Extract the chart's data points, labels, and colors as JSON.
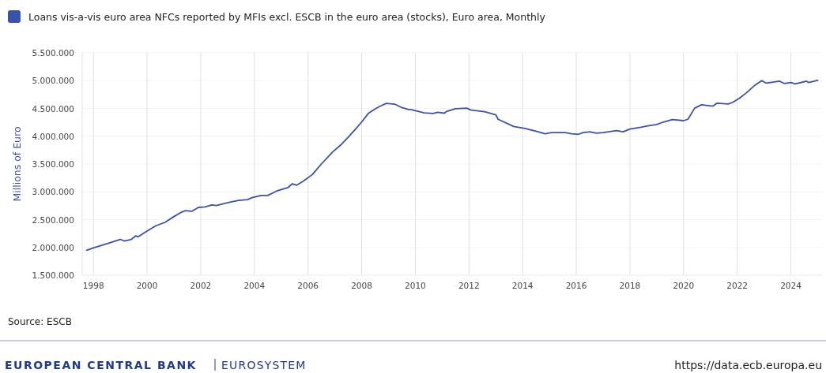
{
  "chart_data": {
    "type": "line",
    "ylabel": "Millions of Euro",
    "legend": "top left",
    "grid": true,
    "line_style": "solid",
    "annotations": [
      "Source: ESCB",
      "EUROPEAN CENTRAL BANK",
      "EUROSYSTEM",
      "https://data.ecb.europa.eu"
    ],
    "xlim": [
      "1997-08",
      "2025-03"
    ],
    "xticks": [
      {
        "value": "1998",
        "label": "1998"
      },
      {
        "value": "2000",
        "label": "2000"
      },
      {
        "value": "2002",
        "label": "2002"
      },
      {
        "value": "2004",
        "label": "2004"
      },
      {
        "value": "2006",
        "label": "2006"
      },
      {
        "value": "2008",
        "label": "2008"
      },
      {
        "value": "2010",
        "label": "2010"
      },
      {
        "value": "2012",
        "label": "2012"
      },
      {
        "value": "2014",
        "label": "2014"
      },
      {
        "value": "2016",
        "label": "2016"
      },
      {
        "value": "2018",
        "label": "2018"
      },
      {
        "value": "2020",
        "label": "2020"
      },
      {
        "value": "2022",
        "label": "2022"
      },
      {
        "value": "2024",
        "label": "2024"
      }
    ],
    "ylim": [
      1500000,
      5500000
    ],
    "yticks": [
      {
        "value": 1500000,
        "label": "1.500.000"
      },
      {
        "value": 2000000,
        "label": "2.000.000"
      },
      {
        "value": 2500000,
        "label": "2.500.000"
      },
      {
        "value": 3000000,
        "label": "3.000.000"
      },
      {
        "value": 3500000,
        "label": "3.500.000"
      },
      {
        "value": 4000000,
        "label": "4.000.000"
      },
      {
        "value": 4500000,
        "label": "4.500.000"
      },
      {
        "value": 5000000,
        "label": "5.000.000"
      },
      {
        "value": 5500000,
        "label": "5.500.000"
      }
    ],
    "series": [
      {
        "name": "Loans vis-a-vis euro area NFCs reported by MFIs excl. ESCB in the euro area (stocks), Euro area, Monthly",
        "color": "#3b52ad",
        "x": [
          "1997-10",
          "1998-01",
          "1998-07",
          "1999-01",
          "1999-03",
          "1999-06",
          "1999-08",
          "1999-09",
          "2000-01",
          "2000-05",
          "2000-09",
          "2001-01",
          "2001-04",
          "2001-06",
          "2001-09",
          "2001-12",
          "2002-03",
          "2002-06",
          "2002-08",
          "2003-02",
          "2003-06",
          "2003-10",
          "2003-12",
          "2004-04",
          "2004-07",
          "2004-11",
          "2005-04",
          "2005-06",
          "2005-08",
          "2005-11",
          "2006-03",
          "2006-07",
          "2006-12",
          "2007-04",
          "2007-07",
          "2007-10",
          "2008-01",
          "2008-04",
          "2008-07",
          "2008-09",
          "2008-12",
          "2009-04",
          "2009-07",
          "2009-10",
          "2009-11",
          "2010-05",
          "2010-09",
          "2010-11",
          "2011-02",
          "2011-03",
          "2011-07",
          "2011-12",
          "2012-02",
          "2012-08",
          "2013-01",
          "2013-02",
          "2013-09",
          "2014-02",
          "2014-07",
          "2014-11",
          "2015-02",
          "2015-08",
          "2015-11",
          "2016-02",
          "2016-04",
          "2016-07",
          "2016-10",
          "2017-01",
          "2017-07",
          "2017-10",
          "2018-01",
          "2018-06",
          "2018-09",
          "2019-01",
          "2019-04",
          "2019-08",
          "2020-01",
          "2020-03",
          "2020-06",
          "2020-09",
          "2021-02",
          "2021-04",
          "2021-09",
          "2021-11",
          "2022-02",
          "2022-05",
          "2022-09",
          "2022-12",
          "2023-02",
          "2023-08",
          "2023-10",
          "2024-01",
          "2024-03",
          "2024-08",
          "2024-09",
          "2025-01"
        ],
        "values": [
          1950000,
          1990000,
          2065000,
          2145000,
          2115000,
          2145000,
          2210000,
          2190000,
          2295000,
          2390000,
          2450000,
          2555000,
          2625000,
          2660000,
          2650000,
          2720000,
          2730000,
          2765000,
          2755000,
          2815000,
          2845000,
          2860000,
          2895000,
          2935000,
          2935000,
          3015000,
          3075000,
          3145000,
          3120000,
          3195000,
          3310000,
          3500000,
          3715000,
          3855000,
          3980000,
          4115000,
          4255000,
          4410000,
          4490000,
          4535000,
          4590000,
          4575000,
          4515000,
          4480000,
          4480000,
          4420000,
          4410000,
          4430000,
          4415000,
          4445000,
          4495000,
          4505000,
          4470000,
          4440000,
          4385000,
          4305000,
          4175000,
          4140000,
          4090000,
          4045000,
          4065000,
          4065000,
          4045000,
          4035000,
          4065000,
          4080000,
          4055000,
          4065000,
          4100000,
          4080000,
          4130000,
          4160000,
          4185000,
          4210000,
          4255000,
          4300000,
          4280000,
          4305000,
          4505000,
          4565000,
          4540000,
          4595000,
          4580000,
          4610000,
          4685000,
          4775000,
          4920000,
          5000000,
          4955000,
          4990000,
          4950000,
          4965000,
          4940000,
          4990000,
          4965000,
          5005000
        ]
      }
    ]
  }
}
